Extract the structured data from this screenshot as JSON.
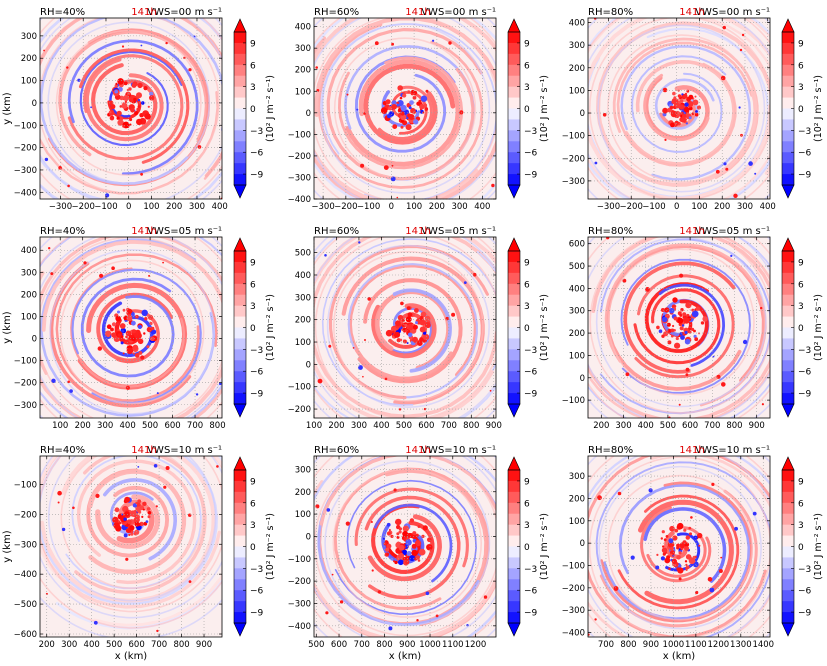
{
  "chart_data": {
    "type": "heatmap",
    "layout": {
      "rows": 3,
      "cols": 3
    },
    "field_colormap": "bwr",
    "colorbar": {
      "label": "(10² J m⁻² s⁻¹)",
      "ticks": [
        "9",
        "6",
        "3",
        "0",
        "−3",
        "−6",
        "−9"
      ],
      "levels": [
        9,
        6,
        3,
        0,
        -3,
        -6,
        -9
      ],
      "range": [
        -10.5,
        10.5
      ],
      "extend": "both"
    },
    "time_label": "141h",
    "time_color": "#e00000",
    "grid": true,
    "xlabel": "x (km)",
    "ylabel": "y (km)",
    "panels": [
      {
        "rh": "RH=40%",
        "vws": "VWS=00 m s⁻¹",
        "xticks": [
          "−300",
          "−200",
          "−100",
          "0",
          "100",
          "200",
          "300",
          "400"
        ],
        "xvals": [
          -300,
          -200,
          -100,
          0,
          100,
          200,
          300,
          400
        ],
        "xlim": [
          -390,
          410
        ],
        "yticks": [
          "300",
          "200",
          "100",
          "0",
          "−100",
          "−200",
          "−300",
          "−400"
        ],
        "yvals": [
          300,
          200,
          100,
          0,
          -100,
          -200,
          -300,
          -400
        ],
        "ylim": [
          -430,
          380
        ],
        "center": [
          0,
          0
        ],
        "spiral": "strong"
      },
      {
        "rh": "RH=60%",
        "vws": "VWS=00 m s⁻¹",
        "xticks": [
          "−300",
          "−200",
          "−100",
          "0",
          "100",
          "200",
          "300",
          "400"
        ],
        "xvals": [
          -300,
          -200,
          -100,
          0,
          100,
          200,
          300,
          400
        ],
        "xlim": [
          -340,
          460
        ],
        "yticks": [
          "400",
          "300",
          "200",
          "100",
          "0",
          "−100",
          "−200",
          "−300",
          "−400"
        ],
        "yvals": [
          400,
          300,
          200,
          100,
          0,
          -100,
          -200,
          -300,
          -400
        ],
        "ylim": [
          -400,
          440
        ],
        "center": [
          60,
          20
        ],
        "spiral": "medium"
      },
      {
        "rh": "RH=80%",
        "vws": "VWS=00 m s⁻¹",
        "xticks": [
          "−300",
          "−200",
          "−100",
          "0",
          "100",
          "200",
          "300",
          "400"
        ],
        "xvals": [
          -300,
          -200,
          -100,
          0,
          100,
          200,
          300,
          400
        ],
        "xlim": [
          -390,
          410
        ],
        "yticks": [
          "400",
          "300",
          "200",
          "100",
          "0",
          "−100",
          "−200",
          "−300"
        ],
        "yvals": [
          400,
          300,
          200,
          100,
          0,
          -100,
          -200,
          -300
        ],
        "ylim": [
          -380,
          420
        ],
        "center": [
          20,
          20
        ],
        "spiral": "weak"
      },
      {
        "rh": "RH=40%",
        "vws": "VWS=05 m s⁻¹",
        "xticks": [
          "100",
          "200",
          "300",
          "400",
          "500",
          "600",
          "700",
          "800"
        ],
        "xvals": [
          100,
          200,
          300,
          400,
          500,
          600,
          700,
          800
        ],
        "xlim": [
          10,
          820
        ],
        "yticks": [
          "400",
          "300",
          "200",
          "100",
          "0",
          "−100",
          "−200",
          "−300"
        ],
        "yvals": [
          400,
          300,
          200,
          100,
          0,
          -100,
          -200,
          -300
        ],
        "ylim": [
          -360,
          460
        ],
        "center": [
          420,
          30
        ],
        "spiral": "strong"
      },
      {
        "rh": "RH=60%",
        "vws": "VWS=05 m s⁻¹",
        "xticks": [
          "100",
          "200",
          "300",
          "400",
          "500",
          "600",
          "700",
          "800",
          "900"
        ],
        "xvals": [
          100,
          200,
          300,
          400,
          500,
          600,
          700,
          800,
          900
        ],
        "xlim": [
          100,
          910
        ],
        "yticks": [
          "500",
          "400",
          "300",
          "200",
          "100",
          "0",
          "−100",
          "−200"
        ],
        "yvals": [
          500,
          400,
          300,
          200,
          100,
          0,
          -100,
          -200
        ],
        "ylim": [
          -240,
          570
        ],
        "center": [
          520,
          170
        ],
        "spiral": "medium"
      },
      {
        "rh": "RH=80%",
        "vws": "VWS=05 m s⁻¹",
        "xticks": [
          "200",
          "300",
          "400",
          "500",
          "600",
          "700",
          "800",
          "900"
        ],
        "xvals": [
          200,
          300,
          400,
          500,
          600,
          700,
          800,
          900
        ],
        "xlim": [
          140,
          960
        ],
        "yticks": [
          "600",
          "500",
          "400",
          "300",
          "200",
          "100",
          "0",
          "−100"
        ],
        "yvals": [
          600,
          500,
          400,
          300,
          200,
          100,
          0,
          -100
        ],
        "ylim": [
          -180,
          630
        ],
        "center": [
          560,
          250
        ],
        "spiral": "strong"
      },
      {
        "rh": "RH=40%",
        "vws": "VWS=10 m s⁻¹",
        "xticks": [
          "200",
          "300",
          "400",
          "500",
          "600",
          "700",
          "800",
          "900"
        ],
        "xvals": [
          200,
          300,
          400,
          500,
          600,
          700,
          800,
          900
        ],
        "xlim": [
          170,
          980
        ],
        "yticks": [
          "−100",
          "−200",
          "−300",
          "−400",
          "−500",
          "−600"
        ],
        "yvals": [
          -100,
          -200,
          -300,
          -400,
          -500,
          -600
        ],
        "ylim": [
          -610,
          -5
        ],
        "center": [
          580,
          -210
        ],
        "spiral": "weak"
      },
      {
        "rh": "RH=60%",
        "vws": "VWS=10 m s⁻¹",
        "xticks": [
          "500",
          "600",
          "700",
          "800",
          "900",
          "1000",
          "1100",
          "1200"
        ],
        "xvals": [
          500,
          600,
          700,
          800,
          900,
          1000,
          1100,
          1200
        ],
        "xlim": [
          490,
          1290
        ],
        "yticks": [
          "300",
          "200",
          "100",
          "0",
          "−100",
          "−200",
          "−300",
          "−400"
        ],
        "yvals": [
          300,
          200,
          100,
          0,
          -100,
          -200,
          -300,
          -400
        ],
        "ylim": [
          -450,
          360
        ],
        "center": [
          900,
          -30
        ],
        "spiral": "strong"
      },
      {
        "rh": "RH=80%",
        "vws": "VWS=10 m s⁻¹",
        "xticks": [
          "700",
          "800",
          "900",
          "1000",
          "1100",
          "1200",
          "1300",
          "1400"
        ],
        "xvals": [
          700,
          800,
          900,
          1000,
          1100,
          1200,
          1300,
          1400
        ],
        "xlim": [
          620,
          1430
        ],
        "yticks": [
          "300",
          "200",
          "100",
          "0",
          "−100",
          "−200",
          "−300",
          "−400"
        ],
        "yvals": [
          300,
          200,
          100,
          0,
          -100,
          -200,
          -300,
          -400
        ],
        "ylim": [
          -420,
          390
        ],
        "center": [
          1030,
          -20
        ],
        "spiral": "strong"
      }
    ]
  }
}
